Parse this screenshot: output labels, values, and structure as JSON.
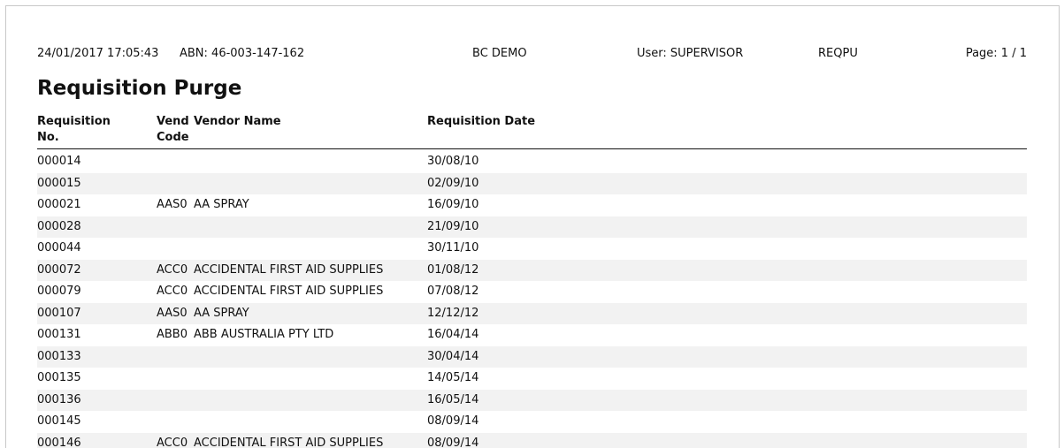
{
  "header": {
    "timestamp": "24/01/2017 17:05:43",
    "abn": "ABN: 46-003-147-162",
    "company": "BC DEMO",
    "user": "User: SUPERVISOR",
    "report_code": "REQPU",
    "page": "Page: 1 / 1"
  },
  "report": {
    "title": "Requisition Purge"
  },
  "columns": {
    "req_no_line1": "Requisition",
    "req_no_line2": "No.",
    "vend_code_line1": "Vend",
    "vend_code_line2": "Code",
    "vendor_name": "Vendor Name",
    "req_date": "Requisition Date"
  },
  "rows": [
    {
      "req": "000014",
      "code": "",
      "name": "",
      "date": "30/08/10"
    },
    {
      "req": "000015",
      "code": "",
      "name": "",
      "date": "02/09/10"
    },
    {
      "req": "000021",
      "code": "AAS0",
      "name": "AA SPRAY",
      "date": "16/09/10"
    },
    {
      "req": "000028",
      "code": "",
      "name": "",
      "date": "21/09/10"
    },
    {
      "req": "000044",
      "code": "",
      "name": "",
      "date": "30/11/10"
    },
    {
      "req": "000072",
      "code": "ACC0",
      "name": "ACCIDENTAL FIRST AID SUPPLIES",
      "date": "01/08/12"
    },
    {
      "req": "000079",
      "code": "ACC0",
      "name": "ACCIDENTAL FIRST AID SUPPLIES",
      "date": "07/08/12"
    },
    {
      "req": "000107",
      "code": "AAS0",
      "name": "AA SPRAY",
      "date": "12/12/12"
    },
    {
      "req": "000131",
      "code": "ABB0",
      "name": "ABB AUSTRALIA PTY LTD",
      "date": "16/04/14"
    },
    {
      "req": "000133",
      "code": "",
      "name": "",
      "date": "30/04/14"
    },
    {
      "req": "000135",
      "code": "",
      "name": "",
      "date": "14/05/14"
    },
    {
      "req": "000136",
      "code": "",
      "name": "",
      "date": "16/05/14"
    },
    {
      "req": "000145",
      "code": "",
      "name": "",
      "date": "08/09/14"
    },
    {
      "req": "000146",
      "code": "ACC0",
      "name": "ACCIDENTAL FIRST AID SUPPLIES",
      "date": "08/09/14"
    }
  ]
}
